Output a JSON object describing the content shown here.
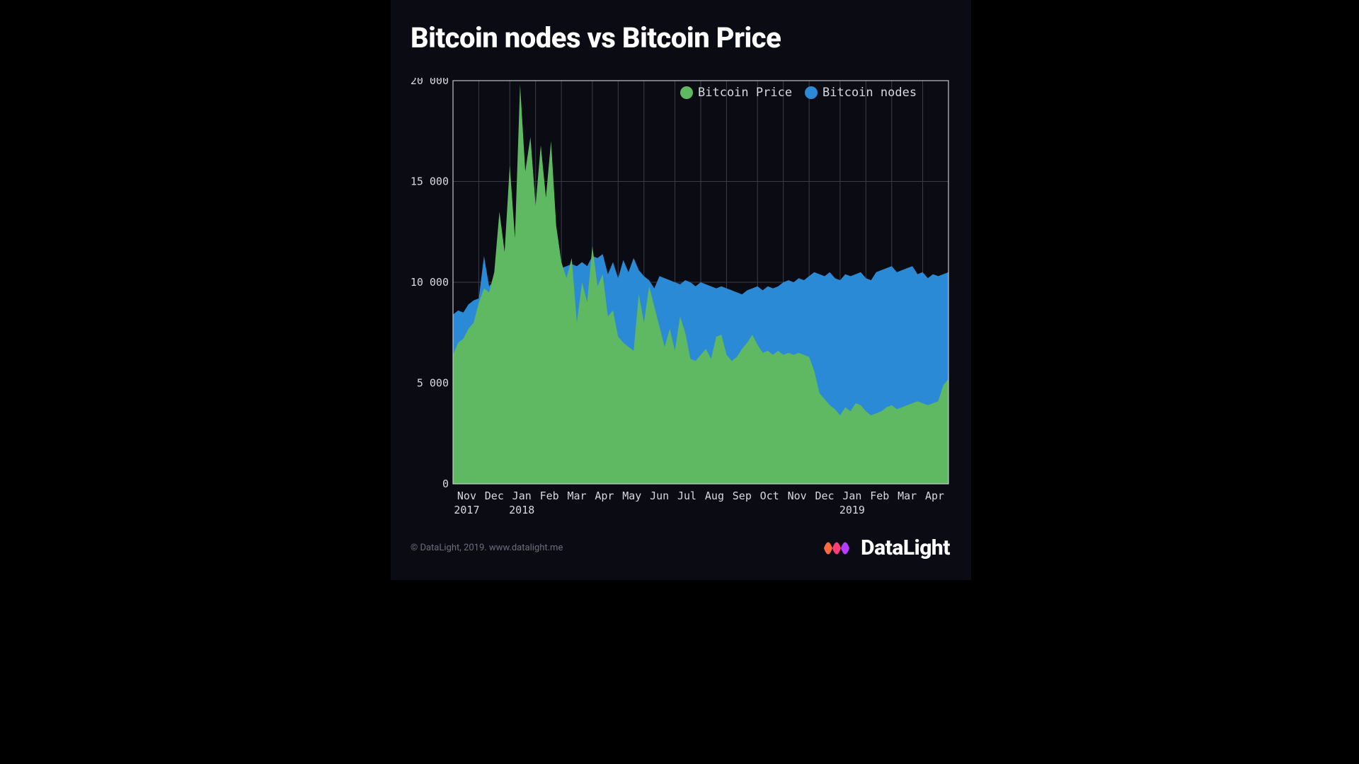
{
  "title": "Bitcoin nodes vs Bitcoin Price",
  "footer_credit": "© DataLight, 2019. www.datalight.me",
  "logo_text": "DataLight",
  "logo_colors": [
    "#ff6a3d",
    "#ff3d77",
    "#b53dff"
  ],
  "chart": {
    "type": "area",
    "background_color": "#0a0b13",
    "plot_background": "#0a0b13",
    "grid_color": "#3a3c48",
    "border_color": "#d7d9e0",
    "label_color": "#d7d9e0",
    "label_fontsize": 15,
    "title_fontsize": 40,
    "ylim": [
      0,
      20000
    ],
    "ytick_step": 5000,
    "ytick_labels": [
      "0",
      "5 000",
      "10 000",
      "15 000",
      "20 000"
    ],
    "x_labels": [
      "Nov",
      "Dec",
      "Jan",
      "Feb",
      "Mar",
      "Apr",
      "May",
      "Jun",
      "Jul",
      "Aug",
      "Sep",
      "Oct",
      "Nov",
      "Dec",
      "Jan",
      "Feb",
      "Mar",
      "Apr"
    ],
    "x_year_labels": {
      "0": "2017",
      "2": "2018",
      "14": "2019"
    },
    "series": [
      {
        "name": "Bitcoin Price",
        "color": "#5fb862",
        "marker": "circle",
        "values": [
          6400,
          7000,
          7200,
          7700,
          8000,
          9000,
          9700,
          9500,
          10500,
          13500,
          11500,
          15800,
          12200,
          19800,
          15500,
          17200,
          13800,
          16800,
          14200,
          17000,
          12800,
          11000,
          10200,
          11200,
          8000,
          10000,
          9000,
          11800,
          9800,
          10400,
          8300,
          8600,
          7300,
          7000,
          6800,
          6600,
          9400,
          8000,
          9800,
          8800,
          7800,
          6800,
          7700,
          6600,
          8300,
          7500,
          6200,
          6100,
          6400,
          6700,
          6200,
          7300,
          7400,
          6400,
          6100,
          6300,
          6700,
          7000,
          7400,
          6900,
          6500,
          6600,
          6400,
          6600,
          6400,
          6500,
          6400,
          6500,
          6400,
          6300,
          5600,
          4500,
          4200,
          3900,
          3700,
          3400,
          3800,
          3600,
          4000,
          3900,
          3600,
          3400,
          3500,
          3600,
          3800,
          3900,
          3700,
          3800,
          3900,
          4000,
          4100,
          4000,
          3900,
          4000,
          4100,
          4900,
          5200
        ]
      },
      {
        "name": "Bitcoin nodes",
        "color": "#2b8ad6",
        "marker": "circle",
        "values": [
          8400,
          8600,
          8500,
          8900,
          9100,
          9200,
          11300,
          9800,
          10100,
          10000,
          10300,
          10500,
          10300,
          10400,
          10600,
          10500,
          10600,
          10500,
          10700,
          10800,
          10600,
          10700,
          10800,
          10900,
          10800,
          11000,
          10800,
          11300,
          11200,
          11400,
          10400,
          11000,
          10200,
          11100,
          10500,
          11200,
          10600,
          10300,
          10100,
          9700,
          10300,
          10200,
          10100,
          10000,
          9900,
          10100,
          10000,
          9800,
          10000,
          9900,
          9800,
          9700,
          9800,
          9700,
          9600,
          9500,
          9400,
          9600,
          9700,
          9800,
          9600,
          9800,
          9700,
          9800,
          10000,
          10100,
          10000,
          10200,
          10100,
          10300,
          10500,
          10400,
          10300,
          10500,
          10200,
          10100,
          10400,
          10300,
          10400,
          10500,
          10200,
          10100,
          10500,
          10600,
          10700,
          10800,
          10500,
          10600,
          10700,
          10800,
          10400,
          10500,
          10200,
          10400,
          10300,
          10400,
          10500
        ]
      }
    ],
    "legend": {
      "position": "top-right",
      "items": [
        {
          "label": "Bitcoin Price",
          "color": "#5fb862"
        },
        {
          "label": "Bitcoin nodes",
          "color": "#2b8ad6"
        }
      ]
    }
  }
}
